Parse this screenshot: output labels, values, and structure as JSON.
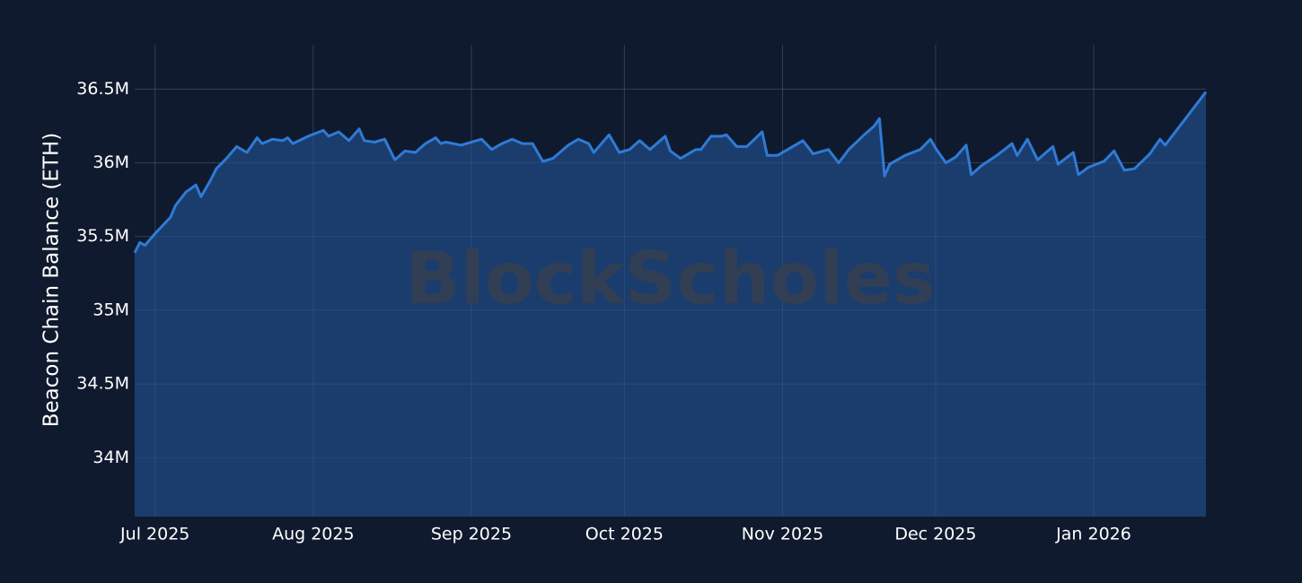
{
  "chart_data": {
    "type": "area",
    "y_label": "Beacon Chain Balance (ETH)",
    "watermark": "BlockScholes",
    "color": "#2f7ad6",
    "fill": "#1c4478",
    "grid": true,
    "xlim": [
      "2025-06-27",
      "2026-01-23"
    ],
    "xticks": [
      {
        "value": "2025-07-01",
        "label": "Jul 2025"
      },
      {
        "value": "2025-08-01",
        "label": "Aug 2025"
      },
      {
        "value": "2025-09-01",
        "label": "Sep 2025"
      },
      {
        "value": "2025-10-01",
        "label": "Oct 2025"
      },
      {
        "value": "2025-11-01",
        "label": "Nov 2025"
      },
      {
        "value": "2025-12-01",
        "label": "Dec 2025"
      },
      {
        "value": "2026-01-01",
        "label": "Jan 2026"
      }
    ],
    "ylim": [
      33600000,
      36800000
    ],
    "yticks": [
      {
        "value": 34000000,
        "label": "34M"
      },
      {
        "value": 34500000,
        "label": "34.5M"
      },
      {
        "value": 35000000,
        "label": "35M"
      },
      {
        "value": 35500000,
        "label": "35.5M"
      },
      {
        "value": 36000000,
        "label": "36M"
      },
      {
        "value": 36500000,
        "label": "36.5M"
      }
    ],
    "x": [
      "2025-06-27",
      "2025-06-28",
      "2025-06-29",
      "2025-07-01",
      "2025-07-04",
      "2025-07-05",
      "2025-07-07",
      "2025-07-09",
      "2025-07-10",
      "2025-07-12",
      "2025-07-13",
      "2025-07-15",
      "2025-07-17",
      "2025-07-19",
      "2025-07-21",
      "2025-07-22",
      "2025-07-24",
      "2025-07-26",
      "2025-07-27",
      "2025-07-28",
      "2025-07-31",
      "2025-08-03",
      "2025-08-04",
      "2025-08-06",
      "2025-08-08",
      "2025-08-10",
      "2025-08-11",
      "2025-08-13",
      "2025-08-15",
      "2025-08-17",
      "2025-08-19",
      "2025-08-21",
      "2025-08-23",
      "2025-08-25",
      "2025-08-26",
      "2025-08-27",
      "2025-08-30",
      "2025-09-01",
      "2025-09-03",
      "2025-09-05",
      "2025-09-07",
      "2025-09-09",
      "2025-09-11",
      "2025-09-13",
      "2025-09-15",
      "2025-09-17",
      "2025-09-20",
      "2025-09-22",
      "2025-09-24",
      "2025-09-25",
      "2025-09-28",
      "2025-09-30",
      "2025-10-02",
      "2025-10-04",
      "2025-10-06",
      "2025-10-09",
      "2025-10-10",
      "2025-10-12",
      "2025-10-15",
      "2025-10-16",
      "2025-10-18",
      "2025-10-20",
      "2025-10-21",
      "2025-10-23",
      "2025-10-25",
      "2025-10-28",
      "2025-10-29",
      "2025-10-31",
      "2025-11-03",
      "2025-11-05",
      "2025-11-07",
      "2025-11-10",
      "2025-11-12",
      "2025-11-14",
      "2025-11-17",
      "2025-11-19",
      "2025-11-20",
      "2025-11-21",
      "2025-11-22",
      "2025-11-25",
      "2025-11-28",
      "2025-11-30",
      "2025-12-01",
      "2025-12-03",
      "2025-12-05",
      "2025-12-07",
      "2025-12-08",
      "2025-12-10",
      "2025-12-13",
      "2025-12-16",
      "2025-12-17",
      "2025-12-19",
      "2025-12-21",
      "2025-12-24",
      "2025-12-25",
      "2025-12-28",
      "2025-12-29",
      "2025-12-31",
      "2026-01-03",
      "2026-01-05",
      "2026-01-07",
      "2026-01-09",
      "2026-01-12",
      "2026-01-14",
      "2026-01-15",
      "2026-01-23"
    ],
    "values": [
      35390000,
      35460000,
      35440000,
      35520000,
      35630000,
      35710000,
      35800000,
      35850000,
      35770000,
      35890000,
      35960000,
      36030000,
      36110000,
      36070000,
      36170000,
      36130000,
      36160000,
      36150000,
      36170000,
      36130000,
      36180000,
      36220000,
      36180000,
      36210000,
      36150000,
      36230000,
      36150000,
      36140000,
      36160000,
      36020000,
      36080000,
      36070000,
      36130000,
      36170000,
      36130000,
      36140000,
      36120000,
      36140000,
      36160000,
      36090000,
      36130000,
      36160000,
      36130000,
      36130000,
      36010000,
      36030000,
      36120000,
      36160000,
      36130000,
      36070000,
      36190000,
      36070000,
      36090000,
      36150000,
      36090000,
      36180000,
      36080000,
      36030000,
      36090000,
      36090000,
      36180000,
      36180000,
      36190000,
      36110000,
      36110000,
      36210000,
      36050000,
      36050000,
      36110000,
      36150000,
      36060000,
      36090000,
      36000000,
      36090000,
      36190000,
      36250000,
      36300000,
      35910000,
      35990000,
      36050000,
      36090000,
      36160000,
      36100000,
      36000000,
      36040000,
      36120000,
      35920000,
      35980000,
      36050000,
      36130000,
      36050000,
      36160000,
      36020000,
      36110000,
      35990000,
      36070000,
      35920000,
      35970000,
      36010000,
      36080000,
      35950000,
      35960000,
      36060000,
      36160000,
      36120000,
      36480000
    ]
  }
}
